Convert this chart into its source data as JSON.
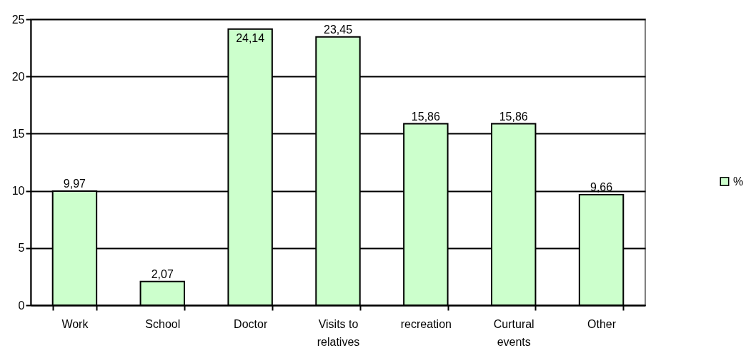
{
  "chart_data": {
    "type": "bar",
    "categories": [
      "Work",
      "School",
      "Doctor",
      "Visits to relatives",
      "recreation",
      "Curtural events",
      "Other"
    ],
    "series": [
      {
        "name": "%",
        "color": "#ccffcc",
        "values": [
          9.97,
          2.07,
          24.14,
          23.45,
          15.86,
          15.86,
          9.66
        ],
        "value_labels": [
          "9,97",
          "2,07",
          "24,14",
          "23,45",
          "15,86",
          "15,86",
          "9,66"
        ]
      }
    ],
    "ylim": [
      0,
      25
    ],
    "yticks": [
      0,
      5,
      10,
      15,
      20,
      25
    ],
    "grid": "y",
    "legend": "right"
  }
}
